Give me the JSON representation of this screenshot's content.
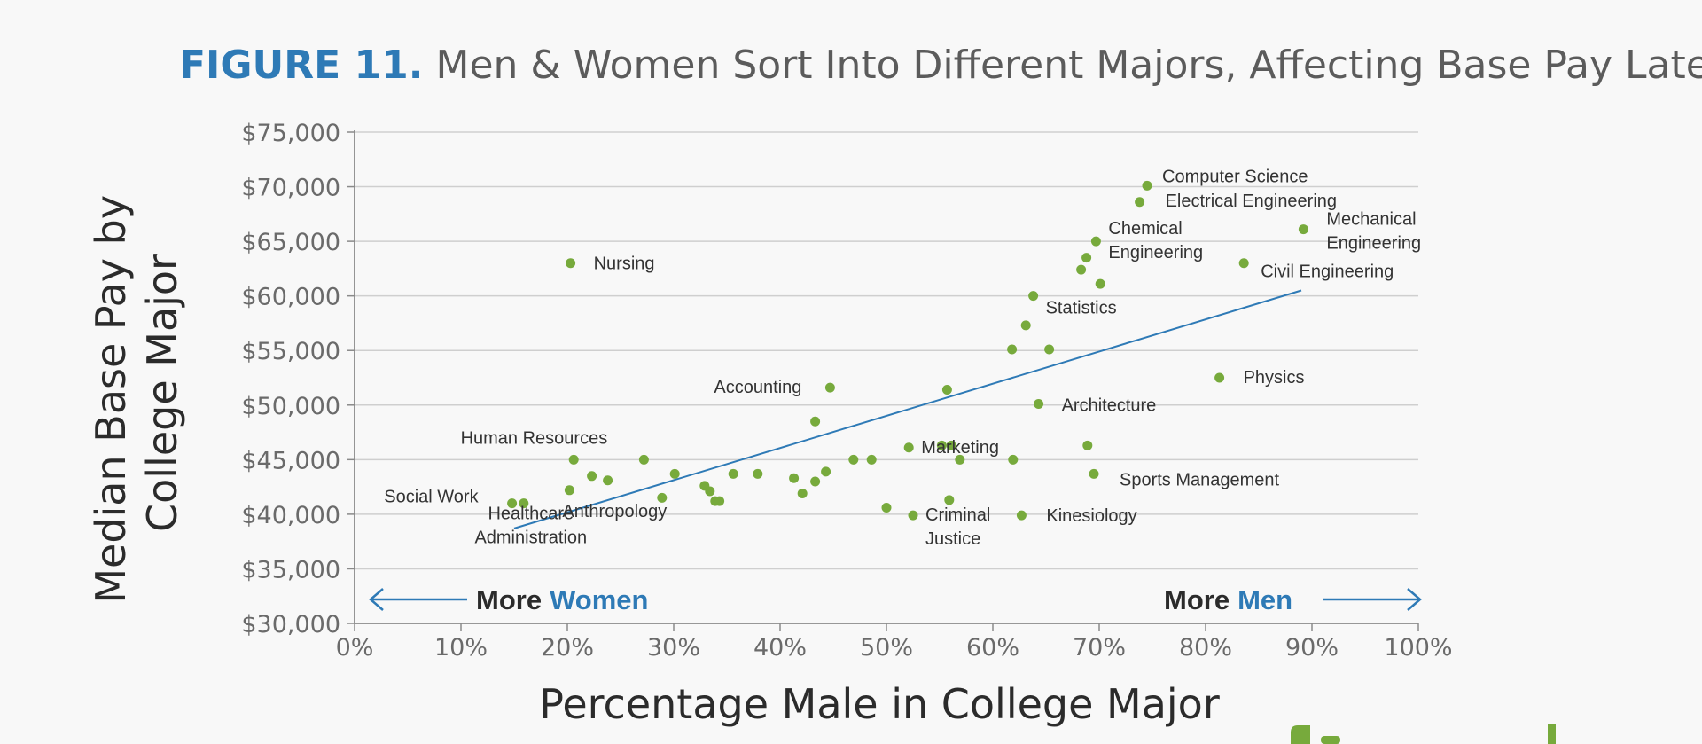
{
  "colors": {
    "accent": "#2e7ab6",
    "point": "#77aa3c",
    "grid": "#cfcfcf",
    "text_dark": "#2b2b2b",
    "title_gray": "#5b5b5b",
    "logo_green": "#77aa3c"
  },
  "title": {
    "figure": "FIGURE 11.",
    "text": "Men & Women Sort Into Different Majors, Affecting Base Pay Later"
  },
  "annotations": {
    "left_more": "More",
    "left_group": "Women",
    "right_more": "More",
    "right_group": "Men"
  },
  "chart_data": {
    "type": "scatter",
    "xlabel": "Percentage Male in College Major",
    "ylabel": [
      "Median Base Pay by",
      "College Major"
    ],
    "xlim": [
      0,
      100
    ],
    "ylim": [
      30000,
      75000
    ],
    "x_ticks": [
      0,
      10,
      20,
      30,
      40,
      50,
      60,
      70,
      80,
      90,
      100
    ],
    "x_tick_labels": [
      "0%",
      "10%",
      "20%",
      "30%",
      "40%",
      "50%",
      "60%",
      "70%",
      "80%",
      "90%",
      "100%"
    ],
    "y_ticks": [
      30000,
      35000,
      40000,
      45000,
      50000,
      55000,
      60000,
      65000,
      70000,
      75000
    ],
    "y_tick_labels": [
      "$30,000",
      "$35,000",
      "$40,000",
      "$45,000",
      "$50,000",
      "$55,000",
      "$60,000",
      "$65,000",
      "$70,000",
      "$75,000"
    ],
    "grid": "horizontal",
    "trendline": {
      "x": [
        15,
        89
      ],
      "y": [
        38700,
        60500
      ]
    },
    "points": [
      {
        "x": 74.5,
        "y": 70100,
        "label": [
          "Computer Science"
        ]
      },
      {
        "x": 73.8,
        "y": 68600,
        "label": [
          "Electrical Engineering"
        ]
      },
      {
        "x": 89.2,
        "y": 66100,
        "label": [
          "Mechanical",
          "Engineering"
        ]
      },
      {
        "x": 69.7,
        "y": 65000,
        "label": [
          "Chemical",
          "Engineering"
        ]
      },
      {
        "x": 68.8,
        "y": 63500
      },
      {
        "x": 68.3,
        "y": 62400
      },
      {
        "x": 83.6,
        "y": 63000,
        "label": [
          "Civil Engineering"
        ]
      },
      {
        "x": 20.3,
        "y": 63000,
        "label": [
          "Nursing"
        ]
      },
      {
        "x": 70.1,
        "y": 61100
      },
      {
        "x": 63.8,
        "y": 60000,
        "label": [
          "Statistics"
        ]
      },
      {
        "x": 63.1,
        "y": 57300
      },
      {
        "x": 61.8,
        "y": 55100
      },
      {
        "x": 65.3,
        "y": 55100
      },
      {
        "x": 81.3,
        "y": 52500,
        "label": [
          "Physics"
        ]
      },
      {
        "x": 44.7,
        "y": 51600,
        "label": [
          "Accounting"
        ]
      },
      {
        "x": 55.7,
        "y": 51400
      },
      {
        "x": 64.3,
        "y": 50100,
        "label": [
          "Architecture"
        ]
      },
      {
        "x": 43.3,
        "y": 48500
      },
      {
        "x": 52.1,
        "y": 46100,
        "label": [
          "Marketing"
        ]
      },
      {
        "x": 55.2,
        "y": 46300
      },
      {
        "x": 56.1,
        "y": 46300
      },
      {
        "x": 68.9,
        "y": 46300
      },
      {
        "x": 20.6,
        "y": 45000,
        "label": [
          "Human Resources"
        ]
      },
      {
        "x": 27.2,
        "y": 45000
      },
      {
        "x": 46.9,
        "y": 45000
      },
      {
        "x": 48.6,
        "y": 45000
      },
      {
        "x": 56.9,
        "y": 45000
      },
      {
        "x": 61.9,
        "y": 45000
      },
      {
        "x": 22.3,
        "y": 43500
      },
      {
        "x": 23.8,
        "y": 43100
      },
      {
        "x": 30.1,
        "y": 43700
      },
      {
        "x": 35.6,
        "y": 43700
      },
      {
        "x": 37.9,
        "y": 43700
      },
      {
        "x": 41.3,
        "y": 43300
      },
      {
        "x": 43.3,
        "y": 43000
      },
      {
        "x": 44.3,
        "y": 43900
      },
      {
        "x": 69.5,
        "y": 43700,
        "label": [
          "Sports Management"
        ]
      },
      {
        "x": 20.2,
        "y": 42200,
        "label": [
          "Anthropology"
        ]
      },
      {
        "x": 32.9,
        "y": 42600
      },
      {
        "x": 33.4,
        "y": 42100
      },
      {
        "x": 42.1,
        "y": 41900
      },
      {
        "x": 28.9,
        "y": 41500
      },
      {
        "x": 33.9,
        "y": 41200
      },
      {
        "x": 34.3,
        "y": 41200
      },
      {
        "x": 55.9,
        "y": 41300
      },
      {
        "x": 14.8,
        "y": 41000,
        "label": [
          "Social Work"
        ]
      },
      {
        "x": 15.9,
        "y": 41000,
        "label": [
          "Healthcare",
          "Administration"
        ]
      },
      {
        "x": 50.0,
        "y": 40600
      },
      {
        "x": 52.5,
        "y": 39900,
        "label": [
          "Criminal",
          "Justice"
        ]
      },
      {
        "x": 62.7,
        "y": 39900,
        "label": [
          "Kinesiology"
        ]
      }
    ]
  }
}
